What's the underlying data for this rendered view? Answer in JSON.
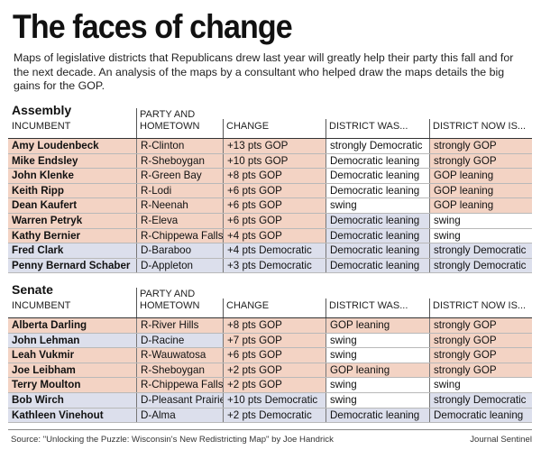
{
  "title": "The faces of change",
  "intro": "Maps of legislative districts that Republicans drew last year will greatly help their party this fall and for the next decade. An analysis of the maps by a consultant who helped draw the maps details the big gains for the GOP.",
  "columns": {
    "incumbent": "INCUMBENT",
    "party_line1": "PARTY AND",
    "party_line2": "HOMETOWN",
    "change": "CHANGE",
    "was": "DISTRICT WAS...",
    "now": "DISTRICT NOW IS..."
  },
  "assembly": {
    "title": "Assembly",
    "rows": [
      {
        "name": "Amy Loudenbeck",
        "party": "R-Clinton",
        "change": "+13 pts GOP",
        "was": "strongly Democratic",
        "now": "strongly GOP",
        "shade": [
          "pink",
          "pink",
          "pink",
          "white",
          "pink"
        ]
      },
      {
        "name": "Mike Endsley",
        "party": "R-Sheboygan",
        "change": "+10 pts GOP",
        "was": "Democratic leaning",
        "now": "strongly GOP",
        "shade": [
          "pink",
          "pink",
          "pink",
          "white",
          "pink"
        ]
      },
      {
        "name": "John Klenke",
        "party": "R-Green Bay",
        "change": "+8 pts GOP",
        "was": "Democratic leaning",
        "now": "GOP leaning",
        "shade": [
          "pink",
          "pink",
          "pink",
          "white",
          "pink"
        ]
      },
      {
        "name": "Keith Ripp",
        "party": "R-Lodi",
        "change": "+6 pts GOP",
        "was": "Democratic leaning",
        "now": "GOP leaning",
        "shade": [
          "pink",
          "pink",
          "pink",
          "white",
          "pink"
        ]
      },
      {
        "name": "Dean Kaufert",
        "party": "R-Neenah",
        "change": "+6 pts GOP",
        "was": "swing",
        "now": "GOP leaning",
        "shade": [
          "pink",
          "pink",
          "pink",
          "white",
          "pink"
        ]
      },
      {
        "name": "Warren Petryk",
        "party": "R-Eleva",
        "change": "+6 pts GOP",
        "was": "Democratic leaning",
        "now": "swing",
        "shade": [
          "pink",
          "pink",
          "pink",
          "blue",
          "white"
        ]
      },
      {
        "name": "Kathy Bernier",
        "party": "R-Chippewa Falls",
        "change": "+4 pts GOP",
        "was": "Democratic leaning",
        "now": "swing",
        "shade": [
          "pink",
          "pink",
          "pink",
          "blue",
          "white"
        ]
      },
      {
        "name": "Fred Clark",
        "party": "D-Baraboo",
        "change": "+4 pts Democratic",
        "was": "Democratic leaning",
        "now": "strongly Democratic",
        "shade": [
          "blue",
          "blue",
          "blue",
          "blue",
          "blue"
        ]
      },
      {
        "name": "Penny Bernard Schaber",
        "party": "D-Appleton",
        "change": "+3 pts Democratic",
        "was": "Democratic leaning",
        "now": "strongly Democratic",
        "shade": [
          "blue",
          "blue",
          "blue",
          "blue",
          "blue"
        ]
      }
    ]
  },
  "senate": {
    "title": "Senate",
    "rows": [
      {
        "name": "Alberta Darling",
        "party": "R-River Hills",
        "change": "+8 pts GOP",
        "was": "GOP leaning",
        "now": "strongly GOP",
        "shade": [
          "pink",
          "pink",
          "pink",
          "pink",
          "pink"
        ]
      },
      {
        "name": "John Lehman",
        "party": "D-Racine",
        "change": "+7 pts GOP",
        "was": "swing",
        "now": "strongly GOP",
        "shade": [
          "blue",
          "blue",
          "pink",
          "white",
          "pink"
        ]
      },
      {
        "name": "Leah Vukmir",
        "party": "R-Wauwatosa",
        "change": "+6 pts GOP",
        "was": "swing",
        "now": "strongly GOP",
        "shade": [
          "pink",
          "pink",
          "pink",
          "white",
          "pink"
        ]
      },
      {
        "name": "Joe Leibham",
        "party": "R-Sheboygan",
        "change": "+2 pts GOP",
        "was": "GOP leaning",
        "now": "strongly GOP",
        "shade": [
          "pink",
          "pink",
          "pink",
          "pink",
          "pink"
        ]
      },
      {
        "name": "Terry Moulton",
        "party": "R-Chippewa Falls",
        "change": "+2 pts GOP",
        "was": "swing",
        "now": "swing",
        "shade": [
          "pink",
          "pink",
          "pink",
          "white",
          "white"
        ]
      },
      {
        "name": "Bob Wirch",
        "party": "D-Pleasant Prairie",
        "change": "+10 pts Democratic",
        "was": "swing",
        "now": "strongly Democratic",
        "shade": [
          "blue",
          "blue",
          "blue",
          "white",
          "blue"
        ]
      },
      {
        "name": "Kathleen Vinehout",
        "party": "D-Alma",
        "change": "+2 pts Democratic",
        "was": "Democratic leaning",
        "now": "Democratic leaning",
        "shade": [
          "blue",
          "blue",
          "blue",
          "blue",
          "blue"
        ]
      }
    ]
  },
  "source": "Source: \"Unlocking the Puzzle: Wisconsin's New Redistricting Map\" by Joe Handrick",
  "credit": "Journal Sentinel"
}
